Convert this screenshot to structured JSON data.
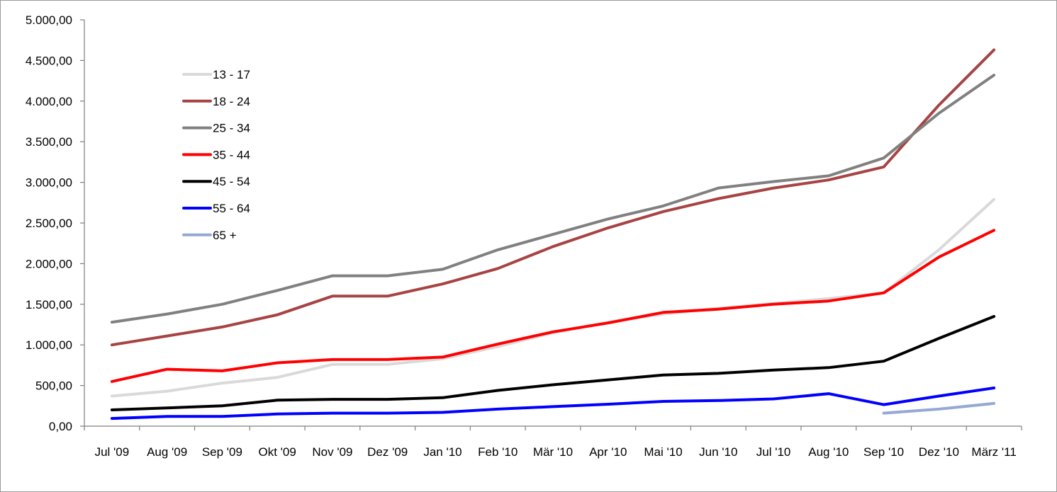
{
  "chart_data": {
    "type": "line",
    "categories": [
      "Jul '09",
      "Aug '09",
      "Sep '09",
      "Okt '09",
      "Nov '09",
      "Dez '09",
      "Jan '10",
      "Feb '10",
      "Mär '10",
      "Apr '10",
      "Mai '10",
      "Jun '10",
      "Jul '10",
      "Aug '10",
      "Sep '10",
      "Dez '10",
      "März '11"
    ],
    "ylim": [
      0,
      5000
    ],
    "yticks": [
      0,
      500,
      1000,
      1500,
      2000,
      2500,
      3000,
      3500,
      4000,
      4500,
      5000
    ],
    "ytick_labels": [
      "0,00",
      "500,00",
      "1.000,00",
      "1.500,00",
      "2.000,00",
      "2.500,00",
      "3.000,00",
      "3.500,00",
      "4.000,00",
      "4.500,00",
      "5.000,00"
    ],
    "grid": false,
    "legend_position": "upper-left inside plot",
    "series": [
      {
        "name": "13 - 17",
        "color": "#d9d9d9",
        "values": [
          370,
          430,
          530,
          600,
          760,
          760,
          830,
          980,
          1150,
          1280,
          1380,
          1450,
          1510,
          1570,
          1640,
          2170,
          2790
        ]
      },
      {
        "name": "18 - 24",
        "color": "#a84343",
        "values": [
          1000,
          1110,
          1220,
          1370,
          1600,
          1600,
          1750,
          1940,
          2210,
          2440,
          2640,
          2800,
          2930,
          3030,
          3190,
          3950,
          4630
        ]
      },
      {
        "name": "25 - 34",
        "color": "#808080",
        "values": [
          1280,
          1380,
          1500,
          1670,
          1850,
          1850,
          1930,
          2170,
          2360,
          2550,
          2710,
          2930,
          3010,
          3080,
          3300,
          3850,
          4320
        ]
      },
      {
        "name": "35 - 44",
        "color": "#ff0000",
        "values": [
          550,
          700,
          680,
          780,
          820,
          820,
          850,
          1010,
          1160,
          1270,
          1400,
          1440,
          1500,
          1540,
          1640,
          2080,
          2410
        ]
      },
      {
        "name": "45 - 54",
        "color": "#000000",
        "values": [
          200,
          225,
          250,
          320,
          330,
          330,
          350,
          440,
          510,
          570,
          630,
          650,
          690,
          720,
          800,
          1080,
          1350
        ]
      },
      {
        "name": "55 - 64",
        "color": "#0000ff",
        "values": [
          95,
          120,
          120,
          150,
          160,
          160,
          170,
          210,
          240,
          270,
          305,
          315,
          335,
          400,
          265,
          370,
          470
        ]
      },
      {
        "name": "65 +",
        "color": "#95a9d4",
        "values": [
          null,
          null,
          null,
          null,
          null,
          null,
          null,
          null,
          null,
          null,
          null,
          null,
          null,
          null,
          160,
          210,
          280
        ]
      }
    ]
  }
}
